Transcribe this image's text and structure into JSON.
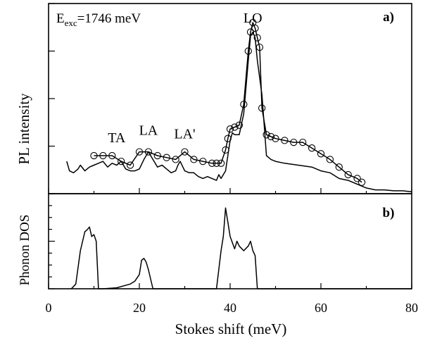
{
  "chart_data": [
    {
      "type": "line",
      "panel_label": "a)",
      "ylabel": "PL intensity",
      "annotation": {
        "prefix": "E",
        "subscript": "exc",
        "suffix": "=1746 meV"
      },
      "xlim": [
        0,
        80
      ],
      "ylim": [
        0,
        100
      ],
      "peak_labels": [
        {
          "text": "TA",
          "x": 15,
          "y": 27
        },
        {
          "text": "LA",
          "x": 22,
          "y": 31
        },
        {
          "text": "LA'",
          "x": 30,
          "y": 29
        },
        {
          "text": "LO",
          "x": 45,
          "y": 90
        }
      ],
      "series": [
        {
          "style": "line-circles",
          "x": [
            10,
            12,
            14,
            16,
            18,
            20,
            22,
            24,
            26,
            28,
            30,
            32,
            34,
            36,
            37,
            38,
            39,
            39.5,
            40,
            41,
            42,
            43,
            44,
            44.5,
            45,
            45.5,
            46,
            46.5,
            47,
            48,
            49,
            50,
            52,
            54,
            56,
            58,
            60,
            62,
            64,
            66,
            68,
            69
          ],
          "y": [
            20,
            20,
            20,
            17,
            15,
            22,
            22,
            20,
            19,
            18,
            22,
            18,
            17,
            16,
            16,
            16,
            23,
            29,
            34,
            35,
            36,
            47,
            75,
            85,
            90,
            87,
            82,
            77,
            45,
            31,
            30,
            29,
            28,
            27,
            27,
            24,
            21,
            18,
            14,
            10,
            8,
            6
          ]
        },
        {
          "style": "line",
          "x": [
            4,
            4.6,
            5.5,
            6.5,
            7,
            8,
            9,
            10,
            11,
            12,
            13,
            14,
            15,
            16,
            17,
            18,
            19,
            20,
            21,
            22,
            23,
            24,
            25,
            26,
            27,
            28,
            28.5,
            29,
            30,
            31,
            32,
            33,
            34,
            35,
            36,
            37,
            37.5,
            38,
            39,
            40,
            40.5,
            41,
            42,
            43,
            44,
            44.5,
            45,
            45.5,
            46,
            47,
            48,
            49,
            50,
            52,
            55,
            58,
            60,
            62,
            64,
            66,
            68,
            70,
            72,
            74,
            76,
            78,
            80
          ],
          "y": [
            17,
            12,
            11,
            13,
            15,
            12,
            14,
            15,
            16,
            17,
            14,
            16,
            15,
            17,
            13,
            12,
            12,
            13,
            18,
            22,
            18,
            14,
            15,
            13,
            11,
            12,
            15,
            17,
            12,
            11,
            11,
            9,
            8,
            9,
            8,
            7,
            10,
            8,
            12,
            28,
            32,
            31,
            31,
            42,
            70,
            83,
            85,
            82,
            70,
            52,
            20,
            18,
            17,
            16,
            15,
            14,
            12,
            11,
            8,
            7,
            5,
            3,
            2,
            2,
            1.5,
            1.5,
            1
          ]
        }
      ]
    },
    {
      "type": "line",
      "panel_label": "b)",
      "ylabel": "Phonon DOS",
      "xlabel": "Stokes shift (meV)",
      "xlim": [
        0,
        80
      ],
      "xticks": [
        0,
        20,
        40,
        60,
        80
      ],
      "ylim": [
        0,
        100
      ],
      "series": [
        {
          "style": "line",
          "x": [
            5,
            6,
            7,
            8,
            8.5,
            9,
            9.5,
            10,
            10.5,
            11,
            12,
            15,
            18,
            19,
            20,
            20.5,
            21,
            21.5,
            22,
            23,
            24,
            25,
            30,
            35,
            36,
            37,
            38,
            38.5,
            39,
            39.5,
            40,
            41,
            41.5,
            42,
            43,
            44,
            44.5,
            45,
            45.5,
            46,
            47,
            50,
            60,
            70,
            80
          ],
          "y": [
            0,
            5,
            40,
            60,
            62,
            65,
            55,
            57,
            50,
            0,
            0,
            1,
            5,
            8,
            15,
            30,
            32,
            28,
            20,
            0,
            0,
            0,
            0,
            0,
            0,
            0,
            40,
            55,
            85,
            70,
            55,
            42,
            50,
            45,
            40,
            45,
            50,
            40,
            35,
            0,
            0,
            0,
            0,
            0,
            0
          ]
        }
      ]
    }
  ]
}
